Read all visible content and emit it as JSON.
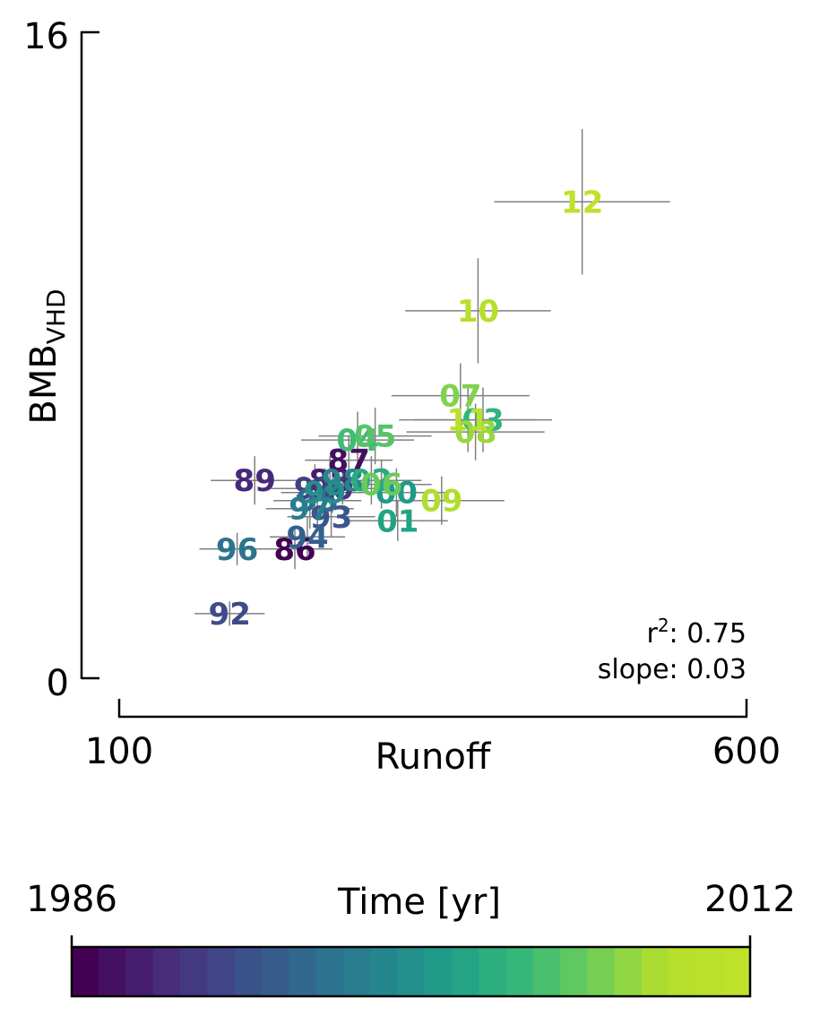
{
  "chart_data": {
    "type": "scatter",
    "title": "",
    "xlabel": "Runoff",
    "ylabel": "BMB",
    "ylabel_subscript": "VHD",
    "xlim": [
      100,
      600
    ],
    "ylim": [
      0,
      16
    ],
    "xtick_labels": [
      "100",
      "600"
    ],
    "ytick_labels": [
      "0",
      "16"
    ],
    "grid": false,
    "annotation": {
      "r2_label": "r",
      "r2_sup": "2",
      "r2_value": ": 0.75",
      "slope_text": "slope: 0.03"
    },
    "colorbar": {
      "label": "Time [yr]",
      "min_label": "1986",
      "max_label": "2012",
      "min": 1986,
      "max": 2012,
      "colormap": "viridis"
    },
    "points": [
      {
        "label": "86",
        "year": 1986,
        "x": 240,
        "y": 3.2,
        "xerr": 30,
        "yerr": 0.5
      },
      {
        "label": "87",
        "year": 1987,
        "x": 283,
        "y": 5.4,
        "xerr": 35,
        "yerr": 0.6
      },
      {
        "label": "88",
        "year": 1988,
        "x": 268,
        "y": 4.9,
        "xerr": 35,
        "yerr": 0.6
      },
      {
        "label": "89",
        "year": 1989,
        "x": 208,
        "y": 4.9,
        "xerr": 35,
        "yerr": 0.6
      },
      {
        "label": "90",
        "year": 1990,
        "x": 270,
        "y": 4.7,
        "xerr": 35,
        "yerr": 0.6
      },
      {
        "label": "91",
        "year": 1991,
        "x": 256,
        "y": 4.7,
        "xerr": 35,
        "yerr": 0.6
      },
      {
        "label": "92",
        "year": 1992,
        "x": 188,
        "y": 1.6,
        "xerr": 28,
        "yerr": 0.3
      },
      {
        "label": "93",
        "year": 1993,
        "x": 269,
        "y": 4.0,
        "xerr": 35,
        "yerr": 0.5
      },
      {
        "label": "94",
        "year": 1994,
        "x": 250,
        "y": 3.5,
        "xerr": 30,
        "yerr": 0.5
      },
      {
        "label": "95",
        "year": 1995,
        "x": 258,
        "y": 4.4,
        "xerr": 35,
        "yerr": 0.6
      },
      {
        "label": "96",
        "year": 1996,
        "x": 194,
        "y": 3.2,
        "xerr": 30,
        "yerr": 0.4
      },
      {
        "label": "97",
        "year": 1997,
        "x": 252,
        "y": 4.2,
        "xerr": 35,
        "yerr": 0.5
      },
      {
        "label": "98",
        "year": 1998,
        "x": 278,
        "y": 4.9,
        "xerr": 35,
        "yerr": 0.6
      },
      {
        "label": "99",
        "year": 1999,
        "x": 264,
        "y": 4.6,
        "xerr": 35,
        "yerr": 0.6
      },
      {
        "label": "00",
        "year": 2000,
        "x": 321,
        "y": 4.6,
        "xerr": 40,
        "yerr": 0.6
      },
      {
        "label": "01",
        "year": 2001,
        "x": 322,
        "y": 3.9,
        "xerr": 40,
        "yerr": 0.5
      },
      {
        "label": "02",
        "year": 2002,
        "x": 301,
        "y": 4.9,
        "xerr": 40,
        "yerr": 0.6
      },
      {
        "label": "03",
        "year": 2003,
        "x": 390,
        "y": 6.4,
        "xerr": 55,
        "yerr": 0.8
      },
      {
        "label": "04",
        "year": 2004,
        "x": 290,
        "y": 5.9,
        "xerr": 45,
        "yerr": 0.7
      },
      {
        "label": "05",
        "year": 2005,
        "x": 304,
        "y": 6.0,
        "xerr": 45,
        "yerr": 0.7
      },
      {
        "label": "06",
        "year": 2006,
        "x": 309,
        "y": 4.8,
        "xerr": 40,
        "yerr": 0.6
      },
      {
        "label": "07",
        "year": 2007,
        "x": 372,
        "y": 7.0,
        "xerr": 55,
        "yerr": 0.8
      },
      {
        "label": "08",
        "year": 2008,
        "x": 384,
        "y": 6.1,
        "xerr": 55,
        "yerr": 0.7
      },
      {
        "label": "09",
        "year": 2009,
        "x": 357,
        "y": 4.4,
        "xerr": 50,
        "yerr": 0.6
      },
      {
        "label": "10",
        "year": 2010,
        "x": 386,
        "y": 9.1,
        "xerr": 58,
        "yerr": 1.3
      },
      {
        "label": "11",
        "year": 2011,
        "x": 378,
        "y": 6.4,
        "xerr": 55,
        "yerr": 0.8
      },
      {
        "label": "12",
        "year": 2012,
        "x": 469,
        "y": 11.8,
        "xerr": 70,
        "yerr": 1.8
      }
    ]
  }
}
